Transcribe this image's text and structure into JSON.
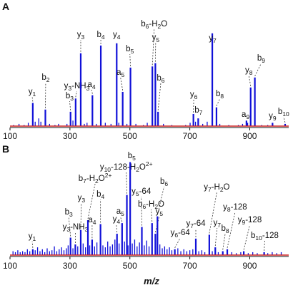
{
  "figure": {
    "panels": [
      "A",
      "B"
    ],
    "xlabel": "m/z"
  },
  "chart_data": [
    {
      "panel": "A",
      "type": "bar",
      "xlim": [
        100,
        1030
      ],
      "ylim": [
        0,
        100
      ],
      "grid": false,
      "baseline_color": "#cc2222",
      "bar_color": "#1010d8",
      "xticks": [
        100,
        300,
        500,
        700,
        900
      ],
      "labeled_peaks": [
        {
          "mz": 176,
          "y": 21,
          "label": "y",
          "sub": "1"
        },
        {
          "mz": 218,
          "y": 15,
          "label": "b",
          "sub": "2"
        },
        {
          "mz": 302,
          "y": 13,
          "label": "b",
          "sub": "3"
        },
        {
          "mz": 319,
          "y": 25,
          "label": "y",
          "sub": "3",
          "suffix": "-NH",
          "suffix_sub": "3"
        },
        {
          "mz": 336,
          "y": 66,
          "label": "y",
          "sub": "3"
        },
        {
          "mz": 375,
          "y": 28,
          "label": "a",
          "sub": "4"
        },
        {
          "mz": 403,
          "y": 73,
          "label": "b",
          "sub": "4"
        },
        {
          "mz": 456,
          "y": 75,
          "label": "y",
          "sub": "4"
        },
        {
          "mz": 476,
          "y": 31,
          "label": "a",
          "sub": "5"
        },
        {
          "mz": 502,
          "y": 53,
          "label": "b",
          "sub": "5"
        },
        {
          "mz": 575,
          "y": 54,
          "label": "b",
          "sub": "6",
          "suffix": "-H",
          "suffix_sub": "2",
          "suffix2": "O"
        },
        {
          "mz": 585,
          "y": 57,
          "label": "y",
          "sub": "5"
        },
        {
          "mz": 594,
          "y": 13,
          "label": "b",
          "sub": "6"
        },
        {
          "mz": 712,
          "y": 11,
          "label": "y",
          "sub": "6"
        },
        {
          "mz": 728,
          "y": 7,
          "label": "b",
          "sub": "7"
        },
        {
          "mz": 775,
          "y": 84,
          "label": "y",
          "sub": "7"
        },
        {
          "mz": 789,
          "y": 17,
          "label": "b",
          "sub": "8"
        },
        {
          "mz": 889,
          "y": 5,
          "label": "a",
          "sub": "9"
        },
        {
          "mz": 903,
          "y": 35,
          "label": "y",
          "sub": "8"
        },
        {
          "mz": 917,
          "y": 44,
          "label": "b",
          "sub": "9"
        },
        {
          "mz": 976,
          "y": 3,
          "label": "y",
          "sub": "9"
        },
        {
          "mz": 1018,
          "y": 2,
          "label": "b",
          "sub": "10"
        }
      ],
      "minor_peaks": [
        {
          "mz": 112,
          "y": 1
        },
        {
          "mz": 130,
          "y": 2
        },
        {
          "mz": 147,
          "y": 1
        },
        {
          "mz": 161,
          "y": 3
        },
        {
          "mz": 184,
          "y": 4
        },
        {
          "mz": 196,
          "y": 7
        },
        {
          "mz": 203,
          "y": 4
        },
        {
          "mz": 232,
          "y": 2
        },
        {
          "mz": 250,
          "y": 1
        },
        {
          "mz": 262,
          "y": 2
        },
        {
          "mz": 290,
          "y": 2
        },
        {
          "mz": 310,
          "y": 5
        },
        {
          "mz": 348,
          "y": 2
        },
        {
          "mz": 357,
          "y": 3
        },
        {
          "mz": 388,
          "y": 2
        },
        {
          "mz": 418,
          "y": 3
        },
        {
          "mz": 437,
          "y": 2
        },
        {
          "mz": 463,
          "y": 3
        },
        {
          "mz": 490,
          "y": 2
        },
        {
          "mz": 520,
          "y": 2
        },
        {
          "mz": 545,
          "y": 1
        },
        {
          "mz": 558,
          "y": 3
        },
        {
          "mz": 612,
          "y": 2
        },
        {
          "mz": 640,
          "y": 1
        },
        {
          "mz": 686,
          "y": 1
        },
        {
          "mz": 701,
          "y": 3
        },
        {
          "mz": 719,
          "y": 4
        },
        {
          "mz": 743,
          "y": 2
        },
        {
          "mz": 758,
          "y": 4
        },
        {
          "mz": 800,
          "y": 2
        },
        {
          "mz": 830,
          "y": 1
        },
        {
          "mz": 862,
          "y": 1
        },
        {
          "mz": 876,
          "y": 2
        },
        {
          "mz": 893,
          "y": 3
        },
        {
          "mz": 940,
          "y": 1
        },
        {
          "mz": 960,
          "y": 1
        }
      ]
    },
    {
      "panel": "B",
      "type": "bar",
      "xlim": [
        100,
        1030
      ],
      "ylim": [
        0,
        100
      ],
      "grid": false,
      "baseline_color": "#cc2222",
      "bar_color": "#1010d8",
      "xticks": [
        100,
        300,
        500,
        700,
        900
      ],
      "labeled_peaks": [
        {
          "mz": 176,
          "y": 6,
          "label": "y",
          "sub": "1"
        },
        {
          "mz": 302,
          "y": 18,
          "label": "b",
          "sub": "3"
        },
        {
          "mz": 318,
          "y": 11,
          "label": "y",
          "sub": "3",
          "suffix": "-NH",
          "suffix_sub": "3"
        },
        {
          "mz": 336,
          "y": 26,
          "label": "y",
          "sub": "3"
        },
        {
          "mz": 360,
          "y": 36,
          "label": "b",
          "sub": "7",
          "suffix": "-H",
          "suffix_sub": "2",
          "suffix2": "O",
          "sup": "2+"
        },
        {
          "mz": 374,
          "y": 16,
          "label": "a",
          "sub": "4"
        },
        {
          "mz": 402,
          "y": 32,
          "label": "b",
          "sub": "4"
        },
        {
          "mz": 457,
          "y": 22,
          "label": "y",
          "sub": "4"
        },
        {
          "mz": 474,
          "y": 33,
          "label": "a",
          "sub": "5"
        },
        {
          "mz": 490,
          "y": 62,
          "label": "y",
          "sub": "10",
          "suffix": "-128-H",
          "suffix_sub": "2",
          "suffix2": "O",
          "sup": "2+"
        },
        {
          "mz": 501,
          "y": 96,
          "label": "b",
          "sub": "5"
        },
        {
          "mz": 540,
          "y": 29,
          "label": "y",
          "sub": "5",
          "suffix": "-64"
        },
        {
          "mz": 574,
          "y": 33,
          "label": "b",
          "sub": "6",
          "suffix": "-H",
          "suffix_sub": "2",
          "suffix2": "O"
        },
        {
          "mz": 585,
          "y": 22,
          "label": "y",
          "sub": "5"
        },
        {
          "mz": 592,
          "y": 40,
          "label": "b",
          "sub": "6"
        },
        {
          "mz": 650,
          "y": 6,
          "label": "y",
          "sub": "6",
          "suffix": "-64"
        },
        {
          "mz": 720,
          "y": 17,
          "label": "y",
          "sub": "7",
          "suffix": "-64"
        },
        {
          "mz": 765,
          "y": 21,
          "label": "y",
          "sub": "7",
          "suffix": "-H",
          "suffix_sub": "2",
          "suffix2": "O"
        },
        {
          "mz": 785,
          "y": 8,
          "label": "y",
          "sub": "7"
        },
        {
          "mz": 810,
          "y": 4,
          "label": "b",
          "sub": "8"
        },
        {
          "mz": 825,
          "y": 6,
          "label": "y",
          "sub": "8",
          "suffix": "-128"
        },
        {
          "mz": 880,
          "y": 4,
          "label": "y",
          "sub": "9",
          "suffix": "-128"
        },
        {
          "mz": 948,
          "y": 3,
          "label": "b",
          "sub": "10",
          "suffix": "-128"
        }
      ],
      "minor_peaks": [
        {
          "mz": 110,
          "y": 4
        },
        {
          "mz": 118,
          "y": 3
        },
        {
          "mz": 126,
          "y": 5
        },
        {
          "mz": 134,
          "y": 3
        },
        {
          "mz": 142,
          "y": 4
        },
        {
          "mz": 150,
          "y": 3
        },
        {
          "mz": 158,
          "y": 6
        },
        {
          "mz": 166,
          "y": 4
        },
        {
          "mz": 184,
          "y": 5
        },
        {
          "mz": 192,
          "y": 8
        },
        {
          "mz": 200,
          "y": 4
        },
        {
          "mz": 208,
          "y": 6
        },
        {
          "mz": 216,
          "y": 3
        },
        {
          "mz": 224,
          "y": 7
        },
        {
          "mz": 232,
          "y": 4
        },
        {
          "mz": 240,
          "y": 5
        },
        {
          "mz": 248,
          "y": 9
        },
        {
          "mz": 256,
          "y": 4
        },
        {
          "mz": 264,
          "y": 6
        },
        {
          "mz": 272,
          "y": 8
        },
        {
          "mz": 280,
          "y": 5
        },
        {
          "mz": 288,
          "y": 7
        },
        {
          "mz": 294,
          "y": 10
        },
        {
          "mz": 310,
          "y": 7
        },
        {
          "mz": 326,
          "y": 9
        },
        {
          "mz": 344,
          "y": 12
        },
        {
          "mz": 352,
          "y": 8
        },
        {
          "mz": 366,
          "y": 10
        },
        {
          "mz": 382,
          "y": 9
        },
        {
          "mz": 390,
          "y": 13
        },
        {
          "mz": 410,
          "y": 10
        },
        {
          "mz": 418,
          "y": 8
        },
        {
          "mz": 426,
          "y": 14
        },
        {
          "mz": 434,
          "y": 9
        },
        {
          "mz": 442,
          "y": 11
        },
        {
          "mz": 450,
          "y": 16
        },
        {
          "mz": 464,
          "y": 12
        },
        {
          "mz": 482,
          "y": 14
        },
        {
          "mz": 494,
          "y": 10
        },
        {
          "mz": 508,
          "y": 12
        },
        {
          "mz": 516,
          "y": 16
        },
        {
          "mz": 524,
          "y": 9
        },
        {
          "mz": 532,
          "y": 13
        },
        {
          "mz": 548,
          "y": 10
        },
        {
          "mz": 556,
          "y": 15
        },
        {
          "mz": 564,
          "y": 9
        },
        {
          "mz": 600,
          "y": 11
        },
        {
          "mz": 608,
          "y": 7
        },
        {
          "mz": 616,
          "y": 9
        },
        {
          "mz": 624,
          "y": 6
        },
        {
          "mz": 632,
          "y": 8
        },
        {
          "mz": 640,
          "y": 5
        },
        {
          "mz": 660,
          "y": 7
        },
        {
          "mz": 670,
          "y": 4
        },
        {
          "mz": 680,
          "y": 6
        },
        {
          "mz": 690,
          "y": 4
        },
        {
          "mz": 700,
          "y": 5
        },
        {
          "mz": 710,
          "y": 6
        },
        {
          "mz": 730,
          "y": 4
        },
        {
          "mz": 740,
          "y": 5
        },
        {
          "mz": 750,
          "y": 3
        },
        {
          "mz": 775,
          "y": 4
        },
        {
          "mz": 795,
          "y": 3
        },
        {
          "mz": 840,
          "y": 3
        },
        {
          "mz": 855,
          "y": 2
        },
        {
          "mz": 870,
          "y": 3
        },
        {
          "mz": 895,
          "y": 2
        },
        {
          "mz": 910,
          "y": 3
        },
        {
          "mz": 925,
          "y": 2
        },
        {
          "mz": 960,
          "y": 2
        },
        {
          "mz": 975,
          "y": 3
        },
        {
          "mz": 990,
          "y": 2
        },
        {
          "mz": 1005,
          "y": 3
        }
      ]
    }
  ]
}
